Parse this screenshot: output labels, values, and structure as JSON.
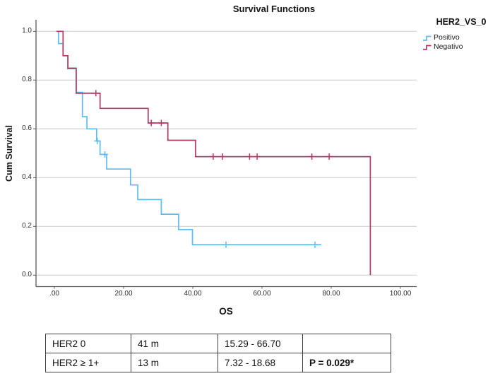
{
  "title": "Survival Functions",
  "legend": {
    "title": "HER2_VS_0",
    "items": [
      {
        "label": "Positivo"
      },
      {
        "label": "Negativo"
      }
    ]
  },
  "axes": {
    "x": {
      "label": "OS",
      "tick_labels": [
        ".00",
        "20.00",
        "40.00",
        "60.00",
        "80.00",
        "100.00"
      ],
      "tick_values": [
        0,
        20,
        40,
        60,
        80,
        100
      ]
    },
    "y": {
      "label": "Cum Survival",
      "tick_labels": [
        "1.0",
        "0.8",
        "0.6",
        "0.4",
        "0.2",
        "0.0"
      ],
      "tick_values": [
        1.0,
        0.8,
        0.6,
        0.4,
        0.2,
        0.0
      ]
    }
  },
  "chart_data": {
    "type": "line",
    "subtype": "kaplan_meier_step",
    "title": "Survival Functions",
    "xlabel": "OS",
    "ylabel": "Cum Survival",
    "xlim": [
      0,
      104
    ],
    "ylim": [
      0,
      1.05
    ],
    "grid": "horizontal-only",
    "legend_position": "top-right",
    "legend_title": "HER2_VS_0",
    "series": [
      {
        "name": "Positivo",
        "color": "#5bbcf4",
        "steps": [
          [
            0.6,
            1.0
          ],
          [
            1.2,
            0.95
          ],
          [
            2.5,
            0.9
          ],
          [
            3.9,
            0.85
          ],
          [
            6.3,
            0.75
          ],
          [
            8.1,
            0.65
          ],
          [
            9.4,
            0.6
          ],
          [
            12.2,
            0.55
          ],
          [
            13.2,
            0.495
          ],
          [
            15.1,
            0.435
          ],
          [
            22.0,
            0.37
          ],
          [
            24.1,
            0.31
          ],
          [
            30.9,
            0.25
          ],
          [
            35.9,
            0.187
          ],
          [
            39.9,
            0.125
          ],
          [
            77.1,
            0.125
          ]
        ],
        "censored": [
          [
            12.4,
            0.55
          ],
          [
            14.6,
            0.495
          ],
          [
            49.6,
            0.125
          ],
          [
            75.3,
            0.125
          ]
        ]
      },
      {
        "name": "Negativo",
        "color": "#b43a60",
        "steps": [
          [
            0.6,
            1.0
          ],
          [
            2.5,
            0.9
          ],
          [
            3.9,
            0.847
          ],
          [
            6.3,
            0.746
          ],
          [
            13.2,
            0.684
          ],
          [
            27.1,
            0.624
          ],
          [
            32.8,
            0.553
          ],
          [
            40.8,
            0.486
          ],
          [
            91.3,
            0.0
          ]
        ],
        "censored": [
          [
            12.0,
            0.746
          ],
          [
            28.0,
            0.624
          ],
          [
            30.9,
            0.624
          ],
          [
            45.9,
            0.486
          ],
          [
            48.6,
            0.486
          ],
          [
            56.4,
            0.486
          ],
          [
            58.6,
            0.486
          ],
          [
            74.4,
            0.486
          ],
          [
            79.4,
            0.486
          ]
        ]
      }
    ]
  },
  "table": {
    "rows": [
      [
        "HER2 0",
        "41 m",
        "15.29 - 66.70",
        ""
      ],
      [
        "HER2 ≥ 1+",
        "13 m",
        "7.32 - 18.68",
        "P = 0.029*"
      ]
    ]
  },
  "colors": {
    "positivo": "#5bbcf4",
    "negativo": "#b43a60",
    "gridline": "#cacaca",
    "axis": "#58595b"
  }
}
